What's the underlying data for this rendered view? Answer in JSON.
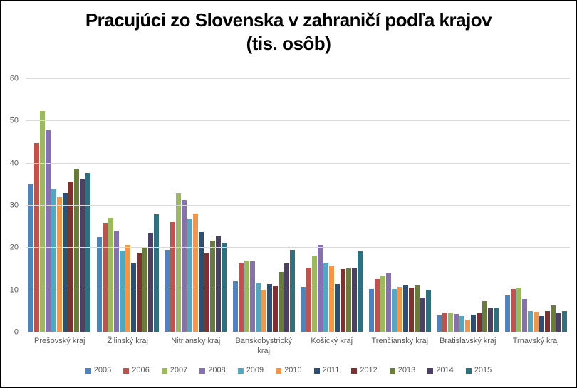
{
  "title_lines": [
    "Pracujúci zo Slovenska v zahraničí podľa krajov",
    "(tis. osôb)"
  ],
  "chart_data": {
    "type": "bar",
    "title": "Pracujúci zo Slovenska v zahraničí podľa krajov (tis. osôb)",
    "xlabel": "",
    "ylabel": "",
    "ylim": [
      0,
      60
    ],
    "ytick_step": 10,
    "ytick_labels": [
      "0",
      "10",
      "20",
      "30",
      "40",
      "50",
      "60"
    ],
    "grid": true,
    "legend_position": "bottom",
    "gridline_color": "#D9D9D9",
    "axis_line_color": "#BFBFBF",
    "tick_text_color": "#595959",
    "categories": [
      "Prešovský kraj",
      "Žilinský kraj",
      "Nitriansky kraj",
      "Banskobystrický kraj",
      "Košický kraj",
      "Trenčiansky kraj",
      "Bratislavský kraj",
      "Trnavský kraj"
    ],
    "series": [
      {
        "name": "2005",
        "color": "#5282BE",
        "values": [
          35.1,
          22.6,
          19.6,
          12.2,
          10.8,
          10.2,
          4.0,
          8.8
        ]
      },
      {
        "name": "2006",
        "color": "#BC534F",
        "values": [
          44.9,
          25.9,
          26.2,
          16.6,
          15.4,
          12.6,
          4.8,
          10.2
        ]
      },
      {
        "name": "2007",
        "color": "#9DB95E",
        "values": [
          52.4,
          27.2,
          33.1,
          17.1,
          18.2,
          13.5,
          4.8,
          10.7
        ]
      },
      {
        "name": "2008",
        "color": "#8571AB",
        "values": [
          47.9,
          24.1,
          31.3,
          16.8,
          20.7,
          14.0,
          4.4,
          7.9
        ]
      },
      {
        "name": "2009",
        "color": "#55A6C0",
        "values": [
          33.8,
          19.4,
          27.0,
          11.6,
          16.4,
          10.3,
          3.9,
          5.1
        ]
      },
      {
        "name": "2010",
        "color": "#F2964D",
        "values": [
          32.0,
          20.7,
          28.2,
          10.1,
          15.8,
          10.8,
          3.1,
          4.9
        ]
      },
      {
        "name": "2011",
        "color": "#2E4E72",
        "values": [
          33.1,
          16.3,
          23.7,
          11.4,
          11.4,
          11.1,
          4.2,
          3.8
        ]
      },
      {
        "name": "2012",
        "color": "#7C3230",
        "values": [
          35.5,
          18.7,
          18.7,
          10.9,
          15.0,
          10.6,
          4.5,
          5.1
        ]
      },
      {
        "name": "2013",
        "color": "#6A7C3D",
        "values": [
          38.7,
          20.2,
          21.7,
          14.4,
          15.1,
          11.1,
          7.4,
          6.4
        ]
      },
      {
        "name": "2014",
        "color": "#4C4063",
        "values": [
          36.3,
          23.6,
          23.0,
          16.3,
          15.3,
          8.2,
          5.7,
          4.6
        ]
      },
      {
        "name": "2015",
        "color": "#2F707F",
        "values": [
          37.8,
          27.9,
          21.2,
          19.5,
          19.3,
          10.1,
          5.9,
          5.0
        ]
      }
    ]
  }
}
